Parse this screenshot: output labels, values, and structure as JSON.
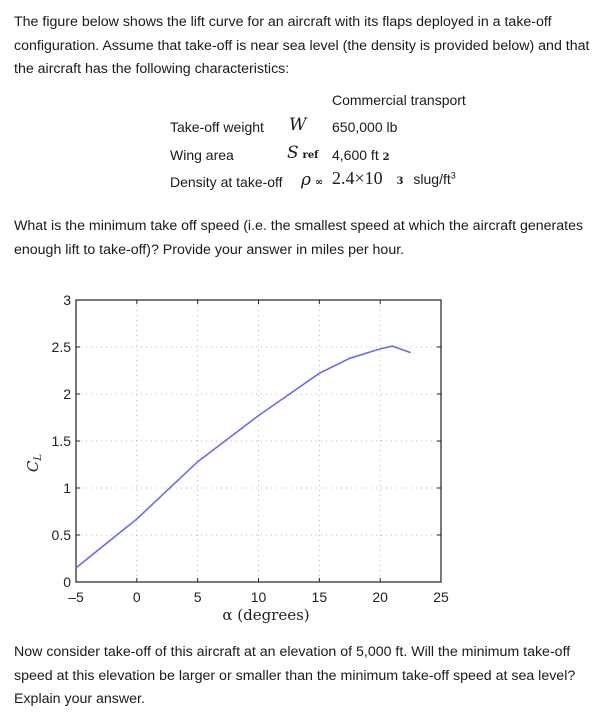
{
  "intro_text": "The figure below shows the lift curve for an aircraft with its flaps deployed in a take-off configuration. Assume that take-off is near sea level (the density is provided below) and that the aircraft has the following characteristics:",
  "table": {
    "column_header": "Commercial transport",
    "rows": [
      {
        "label": "Take-off weight",
        "symbol": "W",
        "subscript": "",
        "value": "650,000 lb",
        "unit_sup": ""
      },
      {
        "label": "Wing area",
        "symbol": "S",
        "subscript": "ref",
        "value": "4,600 ft",
        "unit_sup": "2"
      },
      {
        "label": "Density at take-off",
        "symbol": "ρ",
        "subscript": "∞",
        "value": "2.4×10",
        "exponent": "3",
        "unit": "slug/ft",
        "unit_sup": "3"
      }
    ]
  },
  "question_1": "What is the minimum take off speed (i.e. the smallest speed at which the aircraft generates enough lift to take-off)?  Provide your answer in miles per hour.",
  "question_2": "Now consider take-off of this aircraft at an elevation of 5,000 ft. Will the minimum take-off speed at this elevation be larger or smaller than the minimum take-off speed at sea level? Explain your answer.",
  "chart_data": {
    "type": "line",
    "title": "",
    "xlabel": "α (degrees)",
    "ylabel": "C_L",
    "xlim": [
      -5,
      25
    ],
    "ylim": [
      0,
      3
    ],
    "xticks": [
      "-5",
      "0",
      "5",
      "10",
      "15",
      "20",
      "25"
    ],
    "yticks": [
      "0",
      "0.5",
      "1",
      "1.5",
      "2",
      "2.5",
      "3"
    ],
    "grid": true,
    "line_color": "#6b6bf0",
    "series": [
      {
        "name": "lift curve",
        "x": [
          -5,
          0,
          5,
          10,
          15,
          17.5,
          20,
          21,
          22.5
        ],
        "values": [
          0.15,
          0.67,
          1.28,
          1.77,
          2.22,
          2.38,
          2.48,
          2.51,
          2.44
        ]
      }
    ]
  }
}
